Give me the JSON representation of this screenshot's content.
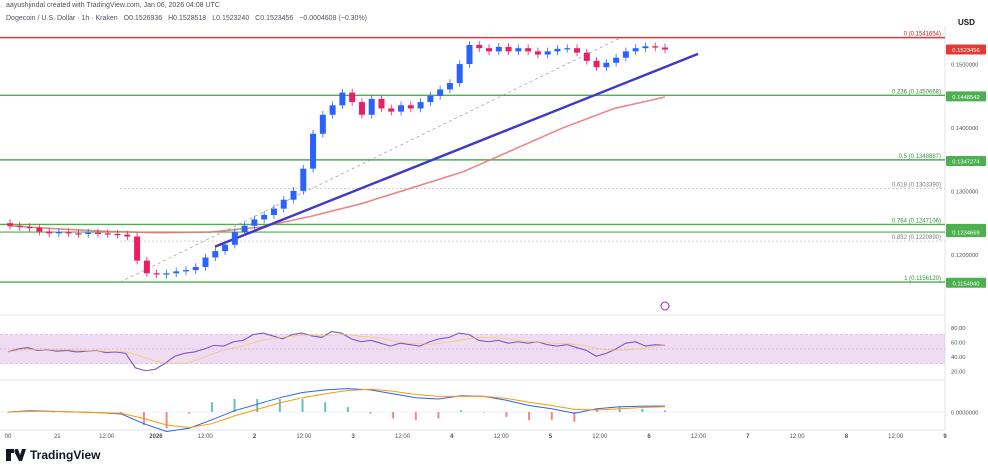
{
  "header": {
    "credit": "aayushjindal created with TradingView.com, Jan 06, 2026 04:08 UTC",
    "symbol": "Dogecoin / U.S. Dollar · 1h · Kraken",
    "open": "O0.1526936",
    "high": "H0.1528518",
    "low": "L0.1523240",
    "close": "C0.1523456",
    "change": "−0.0004608 (−0.30%)",
    "currency": "USD"
  },
  "brand": {
    "name": "TradingView",
    "logo_icon": "tradingview-logo-icon"
  },
  "colors": {
    "up": "#2962ff",
    "down": "#e91e63",
    "support": "#4caf50",
    "trendline": "#3f37c9",
    "ma": "#e57373",
    "resistance": "#e53935",
    "rsi_line": "#7e57c2",
    "rsi_band": "#e1bee7",
    "macd": "#2962ff",
    "signal": "#ff9800"
  },
  "chart_data": {
    "type": "candlestick",
    "title": "Dogecoin / U.S. Dollar · 1h · Kraken",
    "price_range": [
      0.112,
      0.156
    ],
    "x_ticks": [
      "00",
      "21",
      "12:00",
      "2026",
      "12:00",
      "2",
      "12:00",
      "3",
      "12:00",
      "4",
      "12:00",
      "5",
      "12:00",
      "6",
      "12:00",
      "7",
      "12:00",
      "8",
      "12:00",
      "9"
    ],
    "price_ticks": [
      "0.1500000",
      "0.1400000",
      "0.1300000",
      "0.1200000"
    ],
    "price_tags": [
      {
        "label": "0.1523456",
        "value": 0.1523,
        "color": "#e53935"
      },
      {
        "label": "0.1448542",
        "value": 0.1449,
        "color": "#4caf50"
      },
      {
        "label": "0.1347274",
        "value": 0.1347,
        "color": "#4caf50"
      },
      {
        "label": "0.1240361",
        "value": 0.124,
        "color": "#4caf50"
      },
      {
        "label": "0.1234669",
        "value": 0.1235,
        "color": "#4caf50"
      },
      {
        "label": "0.1154940",
        "value": 0.1155,
        "color": "#4caf50"
      }
    ],
    "fib_levels": [
      {
        "label": "0 (0.1541654)",
        "value": 0.1541654
      },
      {
        "label": "0.236 (0.1450668)",
        "value": 0.1450668
      },
      {
        "label": "0.5 (0.1348887)",
        "value": 0.1348887
      },
      {
        "label": "0.618 (0.1303390)",
        "value": 0.130339
      },
      {
        "label": "0.764 (0.1247106)",
        "value": 0.1247106
      },
      {
        "label": "0.832 (0.1220890)",
        "value": 0.122089
      },
      {
        "label": "1 (0.1156120)",
        "value": 0.115612
      }
    ],
    "close_series": [
      0.1245,
      0.1243,
      0.1242,
      0.1236,
      0.1233,
      0.1235,
      0.1233,
      0.1232,
      0.1234,
      0.1233,
      0.1232,
      0.1231,
      0.1228,
      0.119,
      0.117,
      0.1168,
      0.117,
      0.1173,
      0.1175,
      0.118,
      0.1195,
      0.1205,
      0.1215,
      0.1235,
      0.1245,
      0.1255,
      0.1262,
      0.1272,
      0.1286,
      0.13,
      0.1335,
      0.139,
      0.142,
      0.1435,
      0.1455,
      0.144,
      0.142,
      0.1445,
      0.143,
      0.1425,
      0.1435,
      0.143,
      0.144,
      0.145,
      0.146,
      0.147,
      0.15,
      0.153,
      0.1525,
      0.152,
      0.1527,
      0.152,
      0.1525,
      0.152,
      0.1515,
      0.152,
      0.1524,
      0.1525,
      0.1518,
      0.1505,
      0.1495,
      0.1502,
      0.151,
      0.152,
      0.1525,
      0.1528,
      0.1526,
      0.1523
    ],
    "ma_series": [
      0.1245,
      0.124,
      0.1236,
      0.1234,
      0.1235,
      0.1243,
      0.126,
      0.128,
      0.1305,
      0.133,
      0.1365,
      0.14,
      0.143,
      0.1448
    ],
    "rsi": {
      "ticks": [
        "80.00",
        "60.00",
        "40.00",
        "20.00"
      ],
      "band": [
        30,
        70
      ],
      "values": [
        46,
        50,
        52,
        48,
        49,
        47,
        48,
        46,
        47,
        48,
        45,
        46,
        44,
        24,
        20,
        22,
        30,
        40,
        44,
        46,
        50,
        55,
        54,
        60,
        62,
        70,
        72,
        68,
        64,
        70,
        72,
        68,
        66,
        74,
        72,
        64,
        60,
        62,
        58,
        54,
        58,
        56,
        54,
        60,
        64,
        66,
        72,
        70,
        62,
        60,
        62,
        58,
        60,
        58,
        60,
        56,
        54,
        56,
        52,
        48,
        40,
        44,
        50,
        58,
        60,
        54,
        56,
        55
      ]
    },
    "macd": {
      "ticks": [
        "0.0000000"
      ],
      "macd": [
        0,
        0.0002,
        0.0001,
        0.0,
        -0.0001,
        -0.0003,
        -0.0018,
        -0.003,
        -0.0025,
        -0.0012,
        0.0002,
        0.0012,
        0.0022,
        0.003,
        0.0034,
        0.0036,
        0.0034,
        0.0028,
        0.0022,
        0.002,
        0.0025,
        0.0024,
        0.0018,
        0.001,
        0.0005,
        -0.0002,
        0.0005,
        0.0008,
        0.0009,
        0.0009
      ],
      "signal": [
        0,
        0.0001,
        0.0001,
        0.0,
        -0.0001,
        -0.0002,
        -0.001,
        -0.002,
        -0.0024,
        -0.0018,
        -0.0006,
        0.0004,
        0.0014,
        0.0022,
        0.0028,
        0.0033,
        0.0035,
        0.0032,
        0.0027,
        0.0024,
        0.0024,
        0.0024,
        0.0021,
        0.0015,
        0.001,
        0.0004,
        0.0003,
        0.0005,
        0.0007,
        0.0008
      ]
    }
  }
}
